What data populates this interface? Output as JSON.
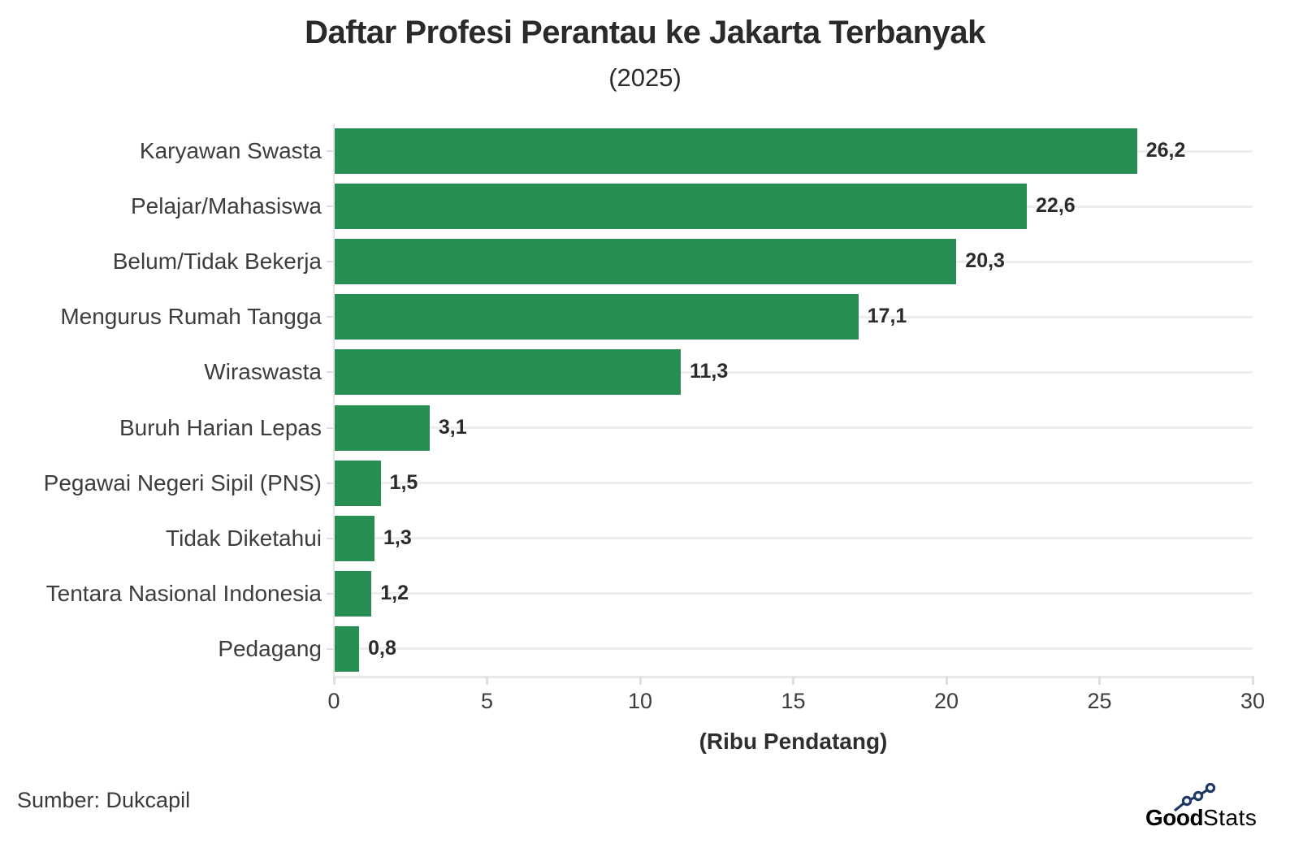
{
  "chart_data": {
    "type": "bar",
    "orientation": "horizontal",
    "title": "Daftar Profesi Perantau ke Jakarta Terbanyak",
    "subtitle": "(2025)",
    "xlabel": "(Ribu Pendatang)",
    "categories": [
      "Karyawan Swasta",
      "Pelajar/Mahasiswa",
      "Belum/Tidak Bekerja",
      "Mengurus Rumah Tangga",
      "Wiraswasta",
      "Buruh Harian Lepas",
      "Pegawai Negeri Sipil (PNS)",
      "Tidak Diketahui",
      "Tentara Nasional Indonesia",
      "Pedagang"
    ],
    "values": [
      26.2,
      22.6,
      20.3,
      17.1,
      11.3,
      3.1,
      1.5,
      1.3,
      1.2,
      0.8
    ],
    "value_labels": [
      "26,2",
      "22,6",
      "20,3",
      "17,1",
      "11,3",
      "3,1",
      "1,5",
      "1,3",
      "1,2",
      "0,8"
    ],
    "xlim": [
      0,
      30
    ],
    "xticks": [
      0,
      5,
      10,
      15,
      20,
      25,
      30
    ],
    "grid": "horizontal",
    "legend": "none",
    "bar_color": "#288e54"
  },
  "footer": {
    "source": "Sumber: Dukcapil",
    "logo": {
      "bold": "Good",
      "light": "Stats",
      "color": "#203a66"
    }
  }
}
